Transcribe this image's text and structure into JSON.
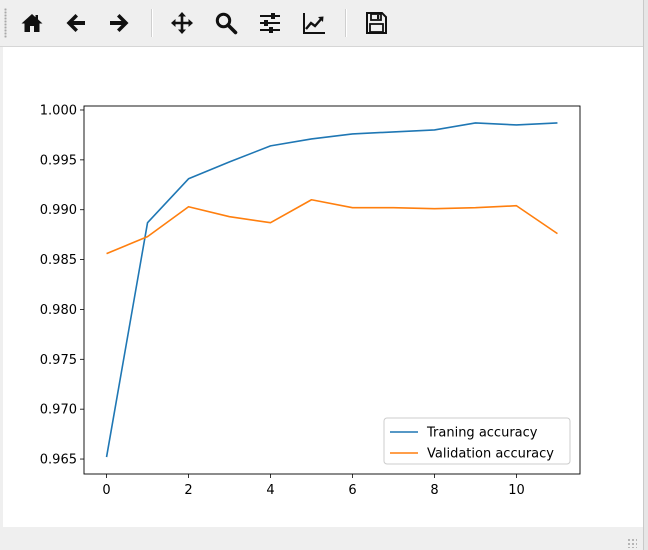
{
  "toolbar": {
    "buttons": [
      {
        "id": "home",
        "icon": "home-icon"
      },
      {
        "id": "back",
        "icon": "arrow-left-icon"
      },
      {
        "id": "forward",
        "icon": "arrow-right-icon"
      },
      {
        "id": "pan",
        "icon": "move-icon"
      },
      {
        "id": "zoom",
        "icon": "magnifier-icon"
      },
      {
        "id": "subplots",
        "icon": "sliders-icon"
      },
      {
        "id": "edit-axes",
        "icon": "line-chart-icon"
      },
      {
        "id": "save",
        "icon": "floppy-disk-icon"
      }
    ]
  },
  "chart_data": {
    "type": "line",
    "x": [
      0,
      1,
      2,
      3,
      4,
      5,
      6,
      7,
      8,
      9,
      10,
      11
    ],
    "series": [
      {
        "name": "Traning accuracy",
        "color": "#1f77b4",
        "values": [
          0.9652,
          0.9887,
          0.9931,
          0.9948,
          0.9964,
          0.9971,
          0.9976,
          0.9978,
          0.998,
          0.9987,
          0.9985,
          0.9987
        ]
      },
      {
        "name": "Validation accuracy",
        "color": "#ff7f0e",
        "values": [
          0.9856,
          0.9873,
          0.9903,
          0.9893,
          0.9887,
          0.991,
          0.9902,
          0.9902,
          0.9901,
          0.9902,
          0.9904,
          0.9876
        ]
      }
    ],
    "xticks": [
      0,
      2,
      4,
      6,
      8,
      10
    ],
    "xtick_labels": [
      "0",
      "2",
      "4",
      "6",
      "8",
      "10"
    ],
    "yticks": [
      0.965,
      0.97,
      0.975,
      0.98,
      0.985,
      0.99,
      0.995,
      1.0
    ],
    "ytick_labels": [
      "0.965",
      "0.970",
      "0.975",
      "0.980",
      "0.985",
      "0.990",
      "0.995",
      "1.000"
    ],
    "xlim": [
      -0.55,
      11.55
    ],
    "ylim": [
      0.9635,
      1.0004
    ],
    "grid": false,
    "legend_position": "lower-right",
    "title": "",
    "xlabel": "",
    "ylabel": ""
  }
}
